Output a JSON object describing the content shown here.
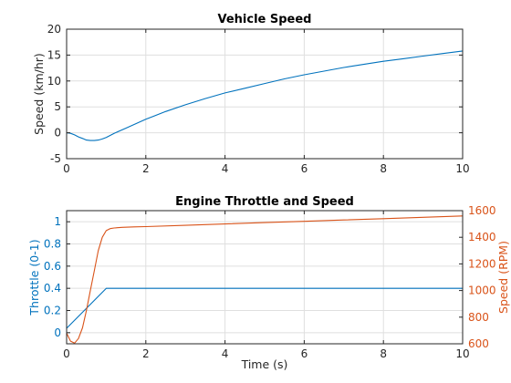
{
  "colors": {
    "blue": "#0072BD",
    "orange": "#D95319",
    "axis": "#262626",
    "grid": "#DFDFDF"
  },
  "chart_data": [
    {
      "type": "line",
      "title": "Vehicle Speed",
      "xlabel": "",
      "ylabel": "Speed (km/hr)",
      "xlim": [
        0,
        10
      ],
      "ylim": [
        -5,
        20
      ],
      "xticks": [
        "0",
        "2",
        "4",
        "6",
        "8",
        "10"
      ],
      "yticks": [
        "-5",
        "0",
        "5",
        "10",
        "15",
        "20"
      ],
      "grid": true,
      "series": [
        {
          "color": "#0072BD",
          "x": [
            0,
            0.1,
            0.2,
            0.3,
            0.4,
            0.5,
            0.6,
            0.7,
            0.8,
            0.9,
            1.0,
            1.2,
            1.5,
            2,
            2.5,
            3,
            3.5,
            4,
            4.5,
            5,
            5.5,
            6,
            6.5,
            7,
            7.5,
            8,
            8.5,
            9,
            9.5,
            10
          ],
          "y": [
            0,
            -0.1,
            -0.4,
            -0.8,
            -1.1,
            -1.4,
            -1.5,
            -1.5,
            -1.4,
            -1.2,
            -0.9,
            -0.1,
            0.9,
            2.6,
            4.1,
            5.4,
            6.6,
            7.7,
            8.6,
            9.5,
            10.4,
            11.2,
            11.9,
            12.6,
            13.2,
            13.8,
            14.3,
            14.8,
            15.3,
            15.8
          ]
        }
      ]
    },
    {
      "type": "line",
      "title": "Engine Throttle and Speed",
      "xlabel": "Time (s)",
      "ylabel": "Throttle (0-1)",
      "ylabel_right": "Speed (RPM)",
      "xlim": [
        0,
        10
      ],
      "ylim": [
        -0.1,
        1.1
      ],
      "ylim_right": [
        600,
        1600
      ],
      "xticks": [
        "0",
        "2",
        "4",
        "6",
        "8",
        "10"
      ],
      "yticks": [
        "0",
        "0.2",
        "0.4",
        "0.6",
        "0.8",
        "1"
      ],
      "yticks_right": [
        "600",
        "800",
        "1000",
        "1200",
        "1400",
        "1600"
      ],
      "grid": true,
      "series": [
        {
          "axis": "left",
          "color": "#0072BD",
          "x": [
            0,
            1.0,
            10
          ],
          "y": [
            0.04,
            0.4,
            0.4
          ]
        },
        {
          "axis": "right",
          "color": "#D95319",
          "x": [
            0,
            0.1,
            0.2,
            0.3,
            0.4,
            0.5,
            0.6,
            0.7,
            0.8,
            0.9,
            1.0,
            1.1,
            1.2,
            1.4,
            1.7,
            2,
            3,
            4,
            5,
            6,
            7,
            8,
            9,
            10
          ],
          "y": [
            680,
            620,
            605,
            640,
            720,
            850,
            1000,
            1150,
            1300,
            1400,
            1450,
            1465,
            1470,
            1475,
            1478,
            1480,
            1490,
            1500,
            1510,
            1520,
            1530,
            1540,
            1550,
            1560
          ]
        }
      ]
    }
  ]
}
